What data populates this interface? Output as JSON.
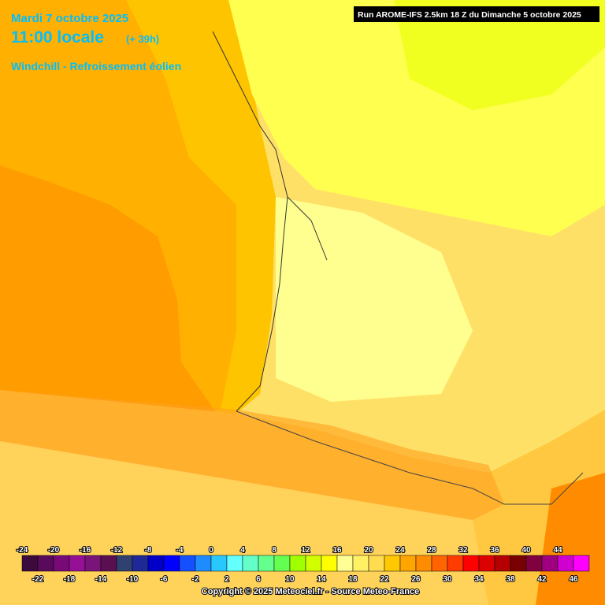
{
  "header": {
    "date": "Mardi 7 octobre 2025",
    "time": "11:00 locale",
    "lead": "(+ 39h)",
    "parameter": "Windchill - Refroissement éolien",
    "run": "Run AROME-IFS 2.5km 18 Z du Dimanche 5 octobre 2025"
  },
  "legend": {
    "values": [
      -24,
      -22,
      -20,
      -18,
      -16,
      -14,
      -12,
      -10,
      -8,
      -6,
      -4,
      -2,
      0,
      2,
      4,
      6,
      8,
      10,
      12,
      14,
      16,
      18,
      20,
      22,
      24,
      26,
      28,
      30,
      32,
      34,
      36,
      38,
      40,
      42,
      44,
      46
    ],
    "colors": [
      "#3c0a3c",
      "#5a0a5a",
      "#780a78",
      "#961096",
      "#78147a",
      "#5a1050",
      "#304070",
      "#1e2896",
      "#0000c8",
      "#0000ff",
      "#1450ff",
      "#1e8cff",
      "#28c8ff",
      "#64ffff",
      "#64ffc8",
      "#64ff8c",
      "#64ff50",
      "#a0ff00",
      "#d2ff00",
      "#ffff00",
      "#ffff96",
      "#fff064",
      "#ffdc50",
      "#ffc800",
      "#ffa500",
      "#ff8c00",
      "#ff6400",
      "#ff3c00",
      "#ff0000",
      "#dc0000",
      "#b40000",
      "#780000",
      "#800040",
      "#a00080",
      "#d000d0",
      "#ff00ff"
    ]
  },
  "footer": {
    "copyright": "Copyright © 2025 Meteociel.fr - Source Meteo-France"
  }
}
